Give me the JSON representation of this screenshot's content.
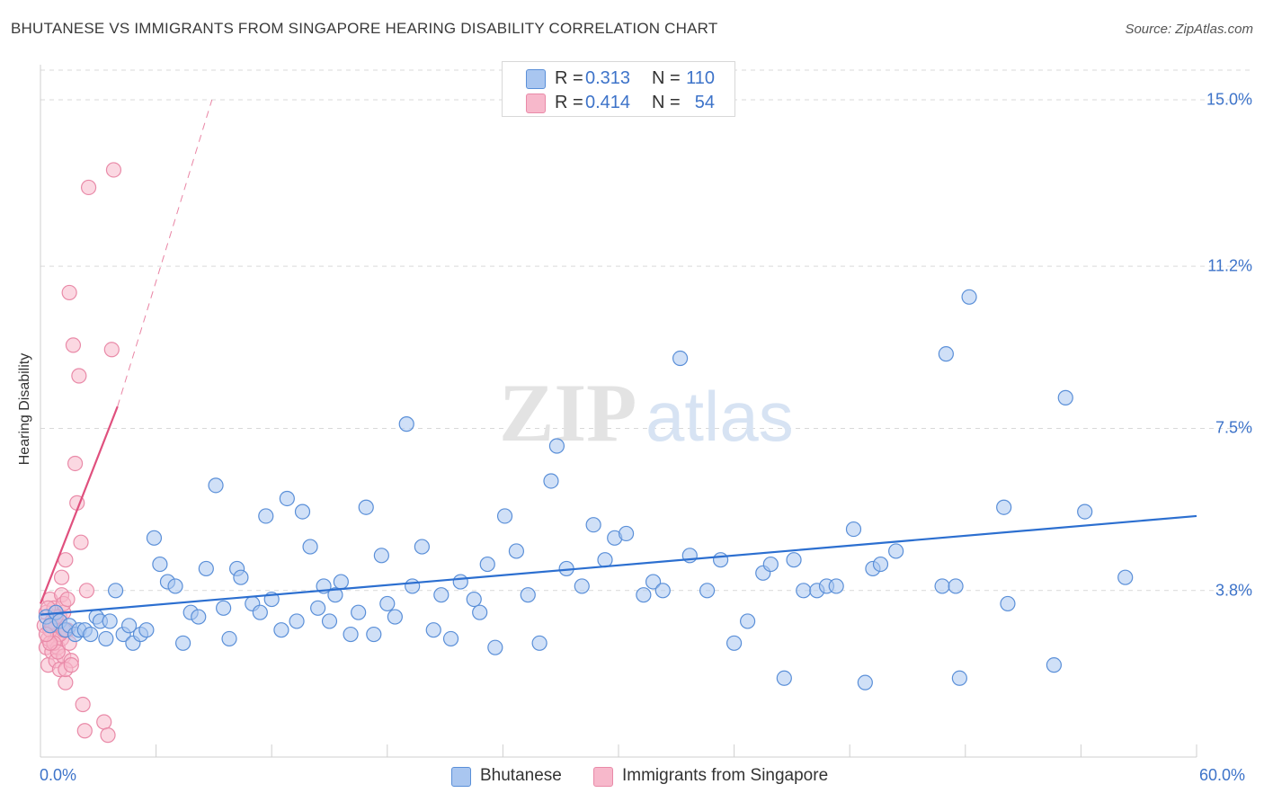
{
  "title": "BHUTANESE VS IMMIGRANTS FROM SINGAPORE HEARING DISABILITY CORRELATION CHART",
  "source": "Source: ZipAtlas.com",
  "watermark": {
    "zip": "ZIP",
    "atlas": "atlas"
  },
  "legend": {
    "series1": {
      "r_label": "R =",
      "r_value": "0.313",
      "n_label": "N =",
      "n_value": "110"
    },
    "series2": {
      "r_label": "R =",
      "r_value": "0.414",
      "n_label": "N =",
      "n_value": "54"
    }
  },
  "colors": {
    "blue_fill": "#a9c6f0",
    "blue_stroke": "#5a8fd8",
    "blue_line": "#2c6fd0",
    "pink_fill": "#f7b8cb",
    "pink_stroke": "#e98aa8",
    "pink_line": "#e0507e",
    "tick_text": "#3d73c9",
    "grid": "#d9d9d9"
  },
  "chart_data": {
    "type": "scatter",
    "title": "BHUTANESE VS IMMIGRANTS FROM SINGAPORE HEARING DISABILITY CORRELATION CHART",
    "xlabel": "",
    "ylabel": "Hearing Disability",
    "xlim": [
      0,
      60
    ],
    "ylim": [
      0,
      15.8
    ],
    "y_ticks": [
      3.8,
      7.5,
      11.2,
      15.0
    ],
    "y_tick_labels": [
      "3.8%",
      "7.5%",
      "11.2%",
      "15.0%"
    ],
    "x_tick_labels": [
      "0.0%",
      "60.0%"
    ],
    "grid": true,
    "legend_position": "top-center",
    "series": [
      {
        "name": "Bhutanese",
        "R": 0.313,
        "N": 110,
        "trend": {
          "x": [
            0,
            60
          ],
          "y": [
            3.25,
            5.5
          ],
          "style": "solid"
        },
        "x": [
          0.3,
          0.5,
          0.8,
          1.0,
          1.3,
          1.5,
          1.8,
          2.0,
          2.3,
          2.6,
          2.9,
          3.1,
          3.4,
          3.6,
          3.9,
          4.3,
          4.6,
          4.8,
          5.2,
          5.5,
          5.9,
          6.2,
          6.6,
          7.0,
          7.4,
          7.8,
          8.2,
          8.6,
          9.1,
          9.5,
          9.8,
          10.2,
          10.4,
          11.0,
          11.4,
          11.7,
          12.0,
          12.5,
          12.8,
          13.3,
          13.6,
          14.0,
          14.4,
          14.7,
          15.0,
          15.3,
          15.6,
          16.1,
          16.5,
          16.9,
          17.3,
          17.7,
          18.0,
          18.4,
          19.0,
          19.3,
          19.8,
          20.4,
          20.8,
          21.3,
          21.8,
          22.5,
          22.8,
          23.2,
          23.6,
          24.1,
          24.7,
          25.3,
          25.9,
          26.5,
          26.8,
          27.3,
          28.1,
          28.7,
          29.3,
          29.8,
          30.4,
          31.3,
          31.8,
          32.3,
          33.2,
          33.7,
          34.6,
          35.3,
          36.0,
          36.7,
          37.5,
          37.9,
          38.6,
          39.1,
          39.6,
          40.3,
          40.8,
          41.3,
          42.2,
          42.8,
          43.2,
          43.6,
          44.4,
          46.8,
          47.0,
          47.5,
          47.7,
          48.2,
          50.0,
          50.2,
          52.6,
          53.2,
          54.2,
          56.3
        ],
        "y": [
          3.2,
          3.0,
          3.3,
          3.1,
          2.9,
          3.0,
          2.8,
          2.9,
          2.9,
          2.8,
          3.2,
          3.1,
          2.7,
          3.1,
          3.8,
          2.8,
          3.0,
          2.6,
          2.8,
          2.9,
          5.0,
          4.4,
          4.0,
          3.9,
          2.6,
          3.3,
          3.2,
          4.3,
          6.2,
          3.4,
          2.7,
          4.3,
          4.1,
          3.5,
          3.3,
          5.5,
          3.6,
          2.9,
          5.9,
          3.1,
          5.6,
          4.8,
          3.4,
          3.9,
          3.1,
          3.7,
          4.0,
          2.8,
          3.3,
          5.7,
          2.8,
          4.6,
          3.5,
          3.2,
          7.6,
          3.9,
          4.8,
          2.9,
          3.7,
          2.7,
          4.0,
          3.6,
          3.3,
          4.4,
          2.5,
          5.5,
          4.7,
          3.7,
          2.6,
          6.3,
          7.1,
          4.3,
          3.9,
          5.3,
          4.5,
          5.0,
          5.1,
          3.7,
          4.0,
          3.8,
          9.1,
          4.6,
          3.8,
          4.5,
          2.6,
          3.1,
          4.2,
          4.4,
          1.8,
          4.5,
          3.8,
          3.8,
          3.9,
          3.9,
          5.2,
          1.7,
          4.3,
          4.4,
          4.7,
          3.9,
          9.2,
          3.9,
          1.8,
          10.5,
          5.7,
          3.5,
          2.1,
          8.2,
          5.6,
          4.1
        ]
      },
      {
        "name": "Immigrants from Singapore",
        "R": 0.414,
        "N": 54,
        "trend": {
          "x": [
            0,
            4.0,
            8.9
          ],
          "y": [
            3.5,
            8.0,
            15.0
          ],
          "style": "solid-then-dashed"
        },
        "x": [
          0.2,
          0.3,
          0.3,
          0.4,
          0.4,
          0.5,
          0.5,
          0.6,
          0.6,
          0.7,
          0.7,
          0.8,
          0.8,
          0.9,
          0.9,
          1.0,
          1.0,
          1.1,
          1.1,
          1.2,
          1.2,
          1.3,
          1.3,
          1.4,
          1.5,
          1.5,
          1.6,
          1.7,
          1.8,
          1.9,
          2.0,
          2.1,
          2.2,
          2.3,
          2.4,
          2.5,
          3.3,
          3.5,
          3.7,
          3.8,
          1.0,
          1.1,
          1.2,
          1.3,
          0.6,
          0.7,
          0.8,
          0.9,
          1.4,
          1.6,
          1.2,
          0.5,
          0.4,
          0.3
        ],
        "y": [
          3.0,
          2.5,
          3.3,
          2.7,
          2.1,
          3.6,
          2.9,
          2.4,
          3.1,
          2.6,
          3.4,
          2.2,
          3.0,
          2.8,
          2.5,
          3.2,
          2.0,
          2.7,
          3.7,
          2.3,
          3.3,
          1.7,
          4.5,
          2.9,
          2.6,
          10.6,
          2.2,
          9.4,
          6.7,
          5.8,
          8.7,
          4.9,
          1.2,
          0.6,
          3.8,
          13.0,
          0.8,
          0.5,
          9.3,
          13.4,
          2.8,
          4.1,
          3.5,
          2.0,
          3.0,
          2.6,
          3.2,
          2.4,
          3.6,
          2.1,
          2.9,
          2.6,
          3.4,
          2.8
        ]
      }
    ]
  }
}
